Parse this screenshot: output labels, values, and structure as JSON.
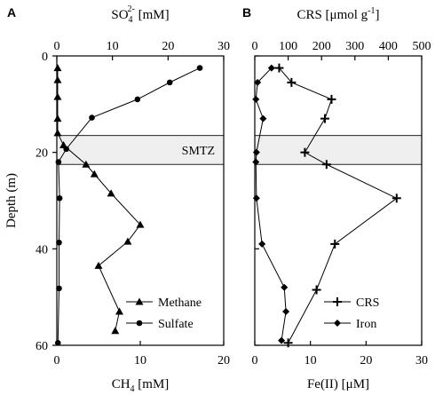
{
  "chart_data": [
    {
      "type": "line",
      "panel": "A",
      "y_axis": {
        "label": "Depth (m)",
        "range": [
          0,
          60
        ],
        "inverted": true,
        "ticks": [
          "0",
          "20",
          "40",
          "60"
        ]
      },
      "x_axes": [
        {
          "position": "bottom",
          "label": "CH",
          "sub": "4",
          "unit": " [mM]",
          "range": [
            0,
            20
          ],
          "ticks": [
            "0",
            "10",
            "20"
          ]
        },
        {
          "position": "top",
          "label": "SO",
          "sub": "4",
          "sup": "2-",
          "unit": " [mM]",
          "range": [
            0,
            30
          ],
          "ticks": [
            "0",
            "10",
            "20",
            "30"
          ]
        }
      ],
      "band": {
        "label": "SMTZ",
        "depth_range": [
          16.5,
          22.5
        ]
      },
      "series": [
        {
          "name": "Methane",
          "axis": "bottom",
          "marker": "triangle",
          "points": [
            [
              0.1,
              2.5
            ],
            [
              0.1,
              5
            ],
            [
              0.1,
              8.5
            ],
            [
              0.1,
              13
            ],
            [
              0.1,
              16
            ],
            [
              0.8,
              18.5
            ],
            [
              3.5,
              22.5
            ],
            [
              4.5,
              24.5
            ],
            [
              6.5,
              28.5
            ],
            [
              10,
              35
            ],
            [
              8.5,
              38.5
            ],
            [
              5,
              43.5
            ],
            [
              7.5,
              53
            ],
            [
              7,
              57
            ]
          ]
        },
        {
          "name": "Sulfate",
          "axis": "top",
          "marker": "circle",
          "points": [
            [
              25.7,
              2.5
            ],
            [
              20.3,
              5.5
            ],
            [
              14.5,
              9
            ],
            [
              6.3,
              12.8
            ],
            [
              1.7,
              19.3
            ],
            [
              0.3,
              22
            ],
            [
              0.5,
              29.5
            ],
            [
              0.4,
              38.7
            ],
            [
              0.4,
              48.2
            ],
            [
              0.2,
              59.5
            ]
          ]
        }
      ],
      "legend": {
        "placement": "bottom-right"
      }
    },
    {
      "type": "line",
      "panel": "B",
      "y_axis": {
        "label": "",
        "range": [
          0,
          60
        ],
        "inverted": true
      },
      "x_axes": [
        {
          "position": "bottom",
          "label": "Fe(II) [μM]",
          "range": [
            0,
            30
          ],
          "ticks": [
            "0",
            "10",
            "20",
            "30"
          ]
        },
        {
          "position": "top",
          "label": "CRS [μmol g",
          "sup": "-1",
          "tail": "]",
          "range": [
            0,
            500
          ],
          "ticks": [
            "0",
            "100",
            "200",
            "300",
            "400",
            "500"
          ]
        }
      ],
      "band": {
        "label": "",
        "depth_range": [
          16.5,
          22.5
        ]
      },
      "series": [
        {
          "name": "CRS",
          "axis": "top",
          "marker": "plus",
          "points": [
            [
              73,
              2.5
            ],
            [
              110,
              5.5
            ],
            [
              230,
              9
            ],
            [
              210,
              13
            ],
            [
              150,
              20
            ],
            [
              215,
              22.5
            ],
            [
              425,
              29.5
            ],
            [
              240,
              39
            ],
            [
              185,
              48.5
            ],
            [
              100,
              59.5
            ]
          ]
        },
        {
          "name": "Iron",
          "axis": "bottom",
          "marker": "diamond",
          "points": [
            [
              3,
              2.5
            ],
            [
              0.5,
              5.5
            ],
            [
              0.2,
              9
            ],
            [
              1.5,
              13
            ],
            [
              0.3,
              20
            ],
            [
              0.2,
              22
            ],
            [
              0.3,
              29.5
            ],
            [
              1.3,
              39
            ],
            [
              5.3,
              48
            ],
            [
              5.6,
              53
            ],
            [
              4.8,
              59
            ]
          ]
        }
      ],
      "legend": {
        "placement": "bottom-right"
      }
    }
  ]
}
